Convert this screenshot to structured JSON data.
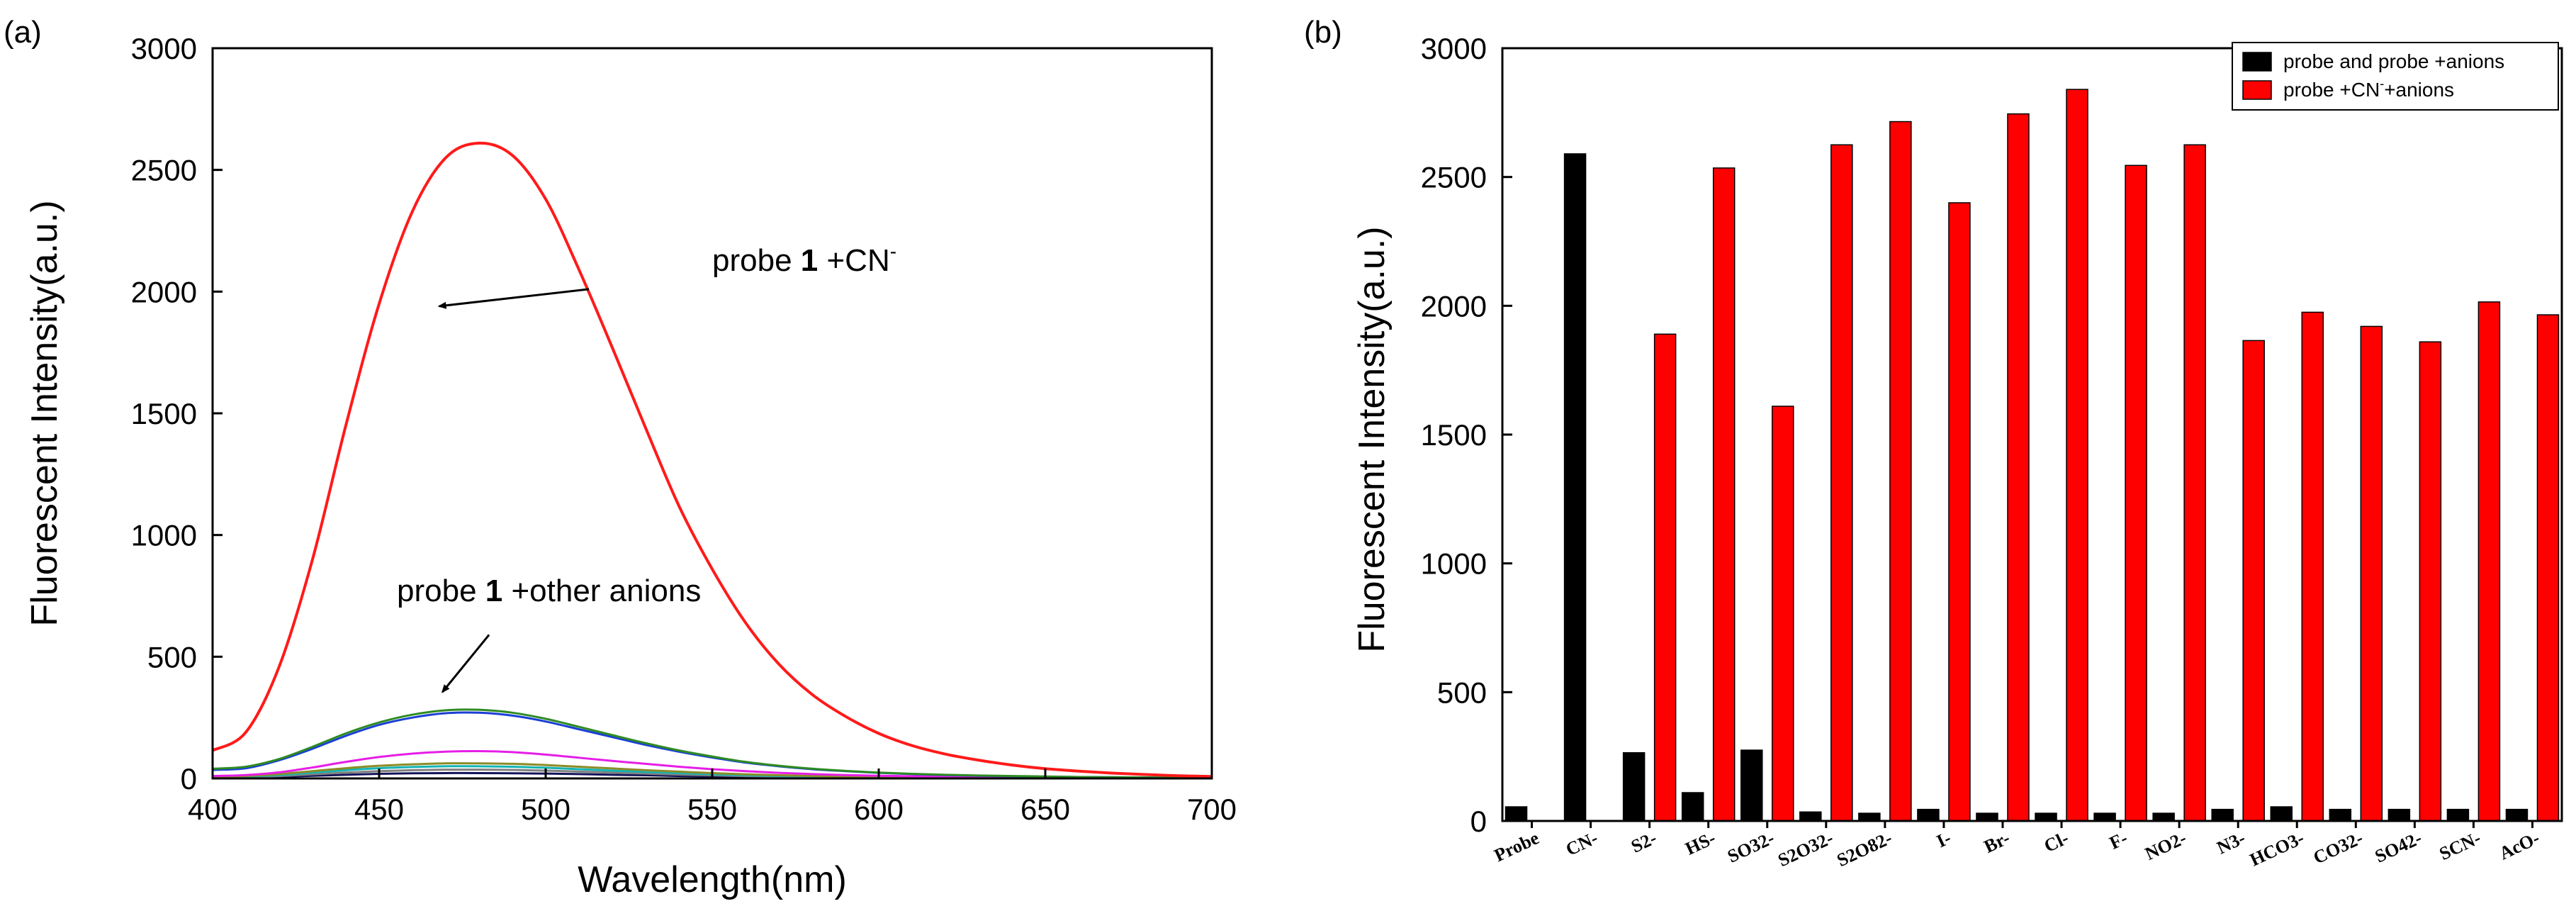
{
  "chart_data": [
    {
      "panel_label": "(a)",
      "type": "line",
      "title": "",
      "xlabel": "Wavelength(nm)",
      "ylabel": "Fluorescent Intensity(a.u.)",
      "xlim": [
        400,
        700
      ],
      "ylim": [
        0,
        3000
      ],
      "xticks": [
        400,
        450,
        500,
        550,
        600,
        650,
        700
      ],
      "yticks": [
        0,
        500,
        1000,
        1500,
        2000,
        2500,
        3000
      ],
      "grid": false,
      "annotations": [
        {
          "prefix": "probe ",
          "bold": "1",
          "suffix": " +CN",
          "sup": "-",
          "arrow_from": [
            513,
            2010
          ],
          "arrow_to": [
            468,
            1940
          ]
        },
        {
          "prefix": "probe ",
          "bold": "1",
          "suffix": " +other anions",
          "arrow_from": [
            483,
            590
          ],
          "arrow_to": [
            469,
            355
          ]
        }
      ],
      "series": [
        {
          "name": "probe 1 +CN-",
          "color": "#ff1a1a",
          "x": [
            400,
            410,
            420,
            430,
            440,
            450,
            460,
            470,
            480,
            490,
            500,
            510,
            520,
            530,
            540,
            550,
            560,
            570,
            580,
            590,
            600,
            610,
            620,
            630,
            640,
            650,
            660,
            670,
            680,
            690,
            700
          ],
          "y": [
            115,
            190,
            460,
            900,
            1450,
            1950,
            2330,
            2550,
            2610,
            2560,
            2380,
            2090,
            1770,
            1440,
            1120,
            860,
            640,
            470,
            345,
            255,
            185,
            135,
            100,
            75,
            55,
            40,
            30,
            22,
            16,
            11,
            8
          ]
        },
        {
          "name": "anion-green",
          "color": "#2e8b22",
          "x": [
            400,
            410,
            420,
            430,
            440,
            450,
            460,
            470,
            480,
            490,
            500,
            510,
            520,
            530,
            540,
            550,
            560,
            570,
            580,
            590,
            600,
            610,
            620,
            630,
            640,
            650,
            660,
            670,
            680,
            690,
            700
          ],
          "y": [
            40,
            48,
            80,
            130,
            185,
            230,
            262,
            280,
            282,
            270,
            245,
            212,
            178,
            145,
            115,
            90,
            68,
            52,
            40,
            31,
            24,
            19,
            15,
            12,
            10,
            8,
            6,
            5,
            4,
            3,
            3
          ]
        },
        {
          "name": "anion-blue",
          "color": "#1a3fd6",
          "x": [
            400,
            410,
            420,
            430,
            440,
            450,
            460,
            470,
            480,
            490,
            500,
            510,
            520,
            530,
            540,
            550,
            560,
            570,
            580,
            590,
            600,
            610,
            620,
            630,
            640,
            650,
            660,
            670,
            680,
            690,
            700
          ],
          "y": [
            35,
            42,
            75,
            122,
            175,
            220,
            250,
            268,
            270,
            258,
            234,
            202,
            170,
            138,
            110,
            86,
            65,
            50,
            38,
            30,
            23,
            18,
            14,
            11,
            9,
            7,
            6,
            5,
            4,
            3,
            3
          ]
        },
        {
          "name": "anion-magenta",
          "color": "#e61ee6",
          "x": [
            400,
            410,
            420,
            430,
            440,
            450,
            460,
            470,
            480,
            490,
            500,
            510,
            520,
            530,
            540,
            550,
            560,
            570,
            580,
            590,
            600,
            610,
            620,
            630,
            640,
            650,
            660,
            670,
            680,
            690,
            700
          ],
          "y": [
            10,
            14,
            25,
            45,
            68,
            88,
            102,
            110,
            112,
            108,
            98,
            85,
            72,
            60,
            48,
            38,
            30,
            23,
            18,
            14,
            11,
            9,
            7,
            6,
            5,
            4,
            3,
            3,
            2,
            2,
            2
          ]
        },
        {
          "name": "anion-olive",
          "color": "#8c8c28",
          "x": [
            400,
            410,
            420,
            430,
            440,
            450,
            460,
            470,
            480,
            490,
            500,
            510,
            520,
            530,
            540,
            550,
            560,
            570,
            580,
            590,
            600,
            610,
            620,
            630,
            640,
            650,
            660,
            670,
            680,
            690,
            700
          ],
          "y": [
            8,
            10,
            18,
            30,
            42,
            52,
            58,
            62,
            62,
            60,
            55,
            48,
            41,
            34,
            28,
            22,
            17,
            13,
            10,
            8,
            6,
            5,
            4,
            3,
            3,
            2,
            2,
            2,
            1,
            1,
            1
          ]
        },
        {
          "name": "anion-cyan",
          "color": "#14b4b4",
          "x": [
            400,
            410,
            420,
            430,
            440,
            450,
            460,
            470,
            480,
            490,
            500,
            510,
            520,
            530,
            540,
            550,
            560,
            570,
            580,
            590,
            600,
            610,
            620,
            630,
            640,
            650,
            660,
            670,
            680,
            690,
            700
          ],
          "y": [
            6,
            8,
            14,
            24,
            34,
            42,
            47,
            50,
            50,
            48,
            44,
            38,
            32,
            27,
            22,
            17,
            13,
            10,
            8,
            6,
            5,
            4,
            3,
            3,
            2,
            2,
            1,
            1,
            1,
            1,
            1
          ]
        },
        {
          "name": "anion-gray",
          "color": "#808080",
          "x": [
            400,
            410,
            420,
            430,
            440,
            450,
            460,
            470,
            480,
            490,
            500,
            510,
            520,
            530,
            540,
            550,
            560,
            570,
            580,
            590,
            600,
            610,
            620,
            630,
            640,
            650,
            660,
            670,
            680,
            690,
            700
          ],
          "y": [
            4,
            6,
            10,
            17,
            24,
            30,
            34,
            36,
            36,
            35,
            32,
            28,
            24,
            20,
            16,
            13,
            10,
            8,
            6,
            5,
            4,
            3,
            3,
            2,
            2,
            1,
            1,
            1,
            1,
            1,
            1
          ]
        },
        {
          "name": "anion-navy",
          "color": "#14145a",
          "x": [
            400,
            410,
            420,
            430,
            440,
            450,
            460,
            470,
            480,
            490,
            500,
            510,
            520,
            530,
            540,
            550,
            560,
            570,
            580,
            590,
            600,
            610,
            620,
            630,
            640,
            650,
            660,
            670,
            680,
            690,
            700
          ],
          "y": [
            3,
            4,
            7,
            11,
            15,
            19,
            21,
            22,
            22,
            21,
            20,
            18,
            15,
            13,
            10,
            8,
            6,
            5,
            4,
            3,
            2,
            2,
            2,
            1,
            1,
            1,
            1,
            1,
            1,
            1,
            1
          ]
        }
      ]
    },
    {
      "panel_label": "(b)",
      "type": "bar",
      "title": "",
      "xlabel": "",
      "ylabel": "Fluorescent Intensity(a.u.)",
      "ylim": [
        0,
        3000
      ],
      "yticks": [
        0,
        500,
        1000,
        1500,
        2000,
        2500,
        3000
      ],
      "grid": false,
      "legend_position": "top-right",
      "categories": [
        "Probe",
        "CN-",
        "S2-",
        "HS-",
        "SO32-",
        "S2O32-",
        "S2O82-",
        "I-",
        "Br-",
        "Cl-",
        "F-",
        "NO2-",
        "N3-",
        "HCO3-",
        "CO32-",
        "SO42-",
        "SCN-",
        "AcO-"
      ],
      "series": [
        {
          "name": "probe and probe +anions",
          "legend_label": "probe and probe +anions",
          "color": "#000000",
          "values": [
            55,
            2590,
            265,
            110,
            275,
            35,
            30,
            45,
            30,
            30,
            30,
            30,
            45,
            55,
            45,
            45,
            45,
            45
          ]
        },
        {
          "name": "probe +CN- +anions",
          "legend_prefix": "probe +CN",
          "legend_sup": "-",
          "legend_suffix": "+anions",
          "color": "#ff0000",
          "values": [
            null,
            null,
            1890,
            2535,
            1610,
            2625,
            2715,
            2400,
            2745,
            2840,
            2545,
            2625,
            1865,
            1975,
            1920,
            1860,
            2015,
            1965
          ]
        }
      ]
    }
  ]
}
